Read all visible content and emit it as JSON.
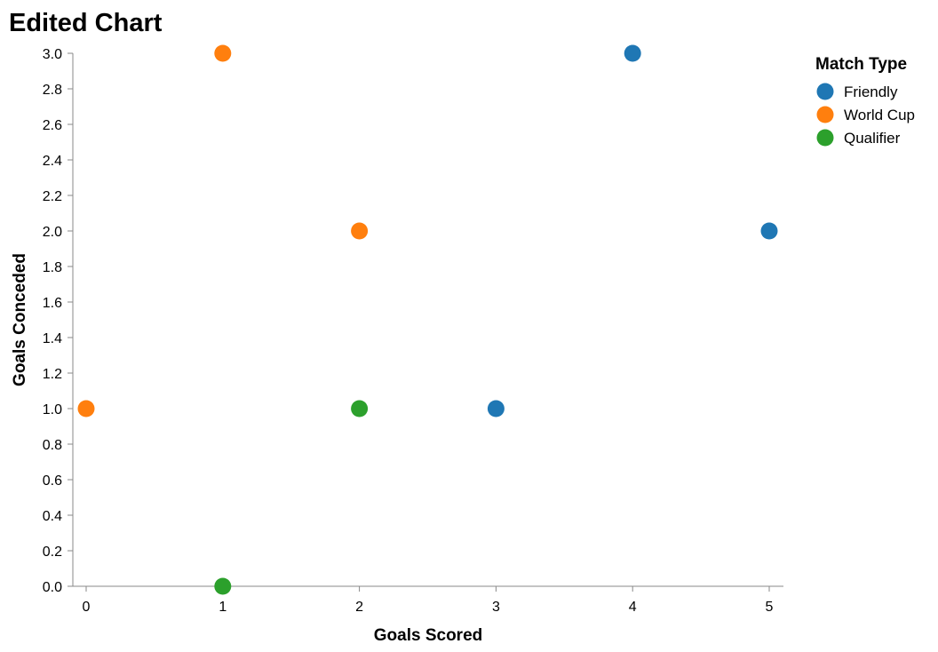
{
  "chart_data": {
    "type": "scatter",
    "title": "Edited Chart",
    "xlabel": "Goals Scored",
    "ylabel": "Goals Conceded",
    "xlim": [
      0,
      5
    ],
    "ylim": [
      0,
      3
    ],
    "x_ticks": [
      "0",
      "1",
      "2",
      "3",
      "4",
      "5"
    ],
    "y_ticks": [
      "0.0",
      "0.2",
      "0.4",
      "0.6",
      "0.8",
      "1.0",
      "1.2",
      "1.4",
      "1.6",
      "1.8",
      "2.0",
      "2.2",
      "2.4",
      "2.6",
      "2.8",
      "3.0"
    ],
    "grid": false,
    "legend": {
      "title": "Match Type",
      "position": "top-right"
    },
    "series": [
      {
        "name": "Friendly",
        "color": "#1f77b4",
        "points": [
          {
            "x": 3,
            "y": 1
          },
          {
            "x": 4,
            "y": 3
          },
          {
            "x": 5,
            "y": 2
          }
        ]
      },
      {
        "name": "World Cup",
        "color": "#ff7f0e",
        "points": [
          {
            "x": 0,
            "y": 1
          },
          {
            "x": 1,
            "y": 3
          },
          {
            "x": 2,
            "y": 2
          }
        ]
      },
      {
        "name": "Qualifier",
        "color": "#2ca02c",
        "points": [
          {
            "x": 1,
            "y": 0
          },
          {
            "x": 2,
            "y": 1
          }
        ]
      }
    ]
  }
}
